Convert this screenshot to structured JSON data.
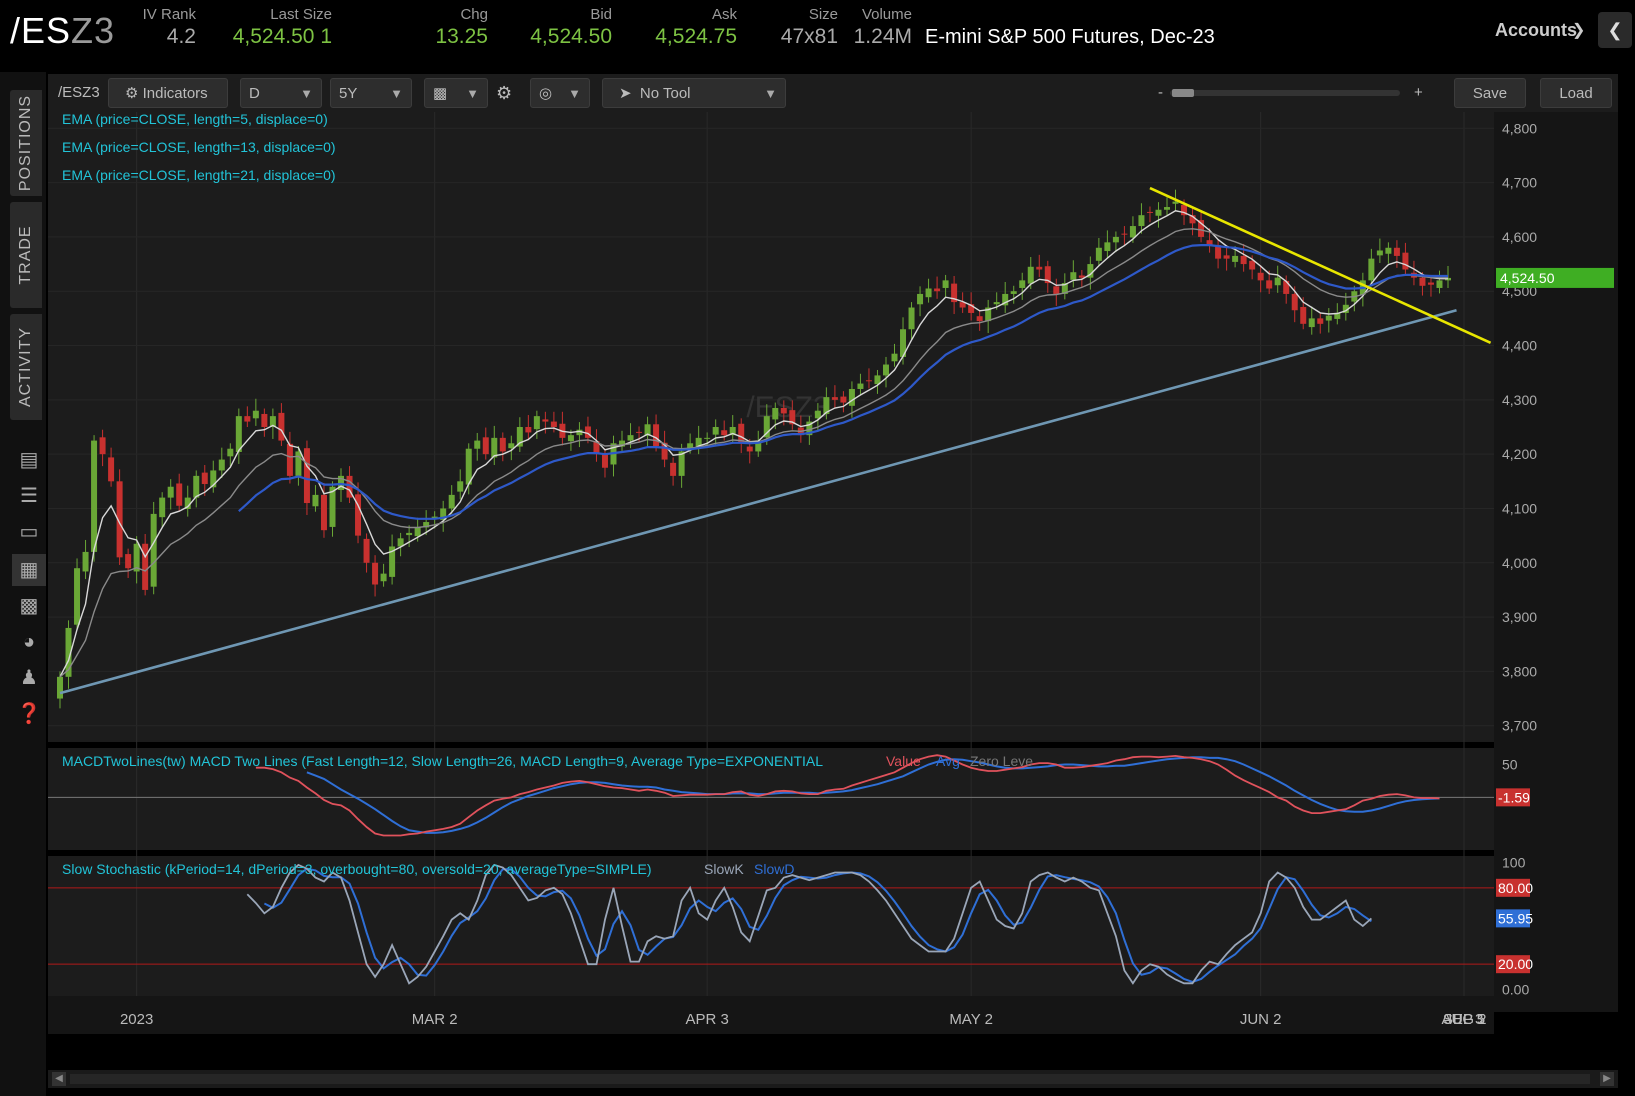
{
  "header": {
    "symbol_prefix": "/ES",
    "symbol_suffix": "Z3",
    "quotes": [
      {
        "label": "IV Rank",
        "value": "4.2",
        "color": "#aaaaaa"
      },
      {
        "label": "Last Size",
        "value": "4,524.50",
        "extra": "1",
        "color": "#7dc243"
      },
      {
        "label": "Chg",
        "value": "13.25",
        "color": "#7dc243"
      },
      {
        "label": "Bid",
        "value": "4,524.50",
        "color": "#7dc243"
      },
      {
        "label": "Ask",
        "value": "4,524.75",
        "color": "#7dc243"
      },
      {
        "label": "Size",
        "value": "47x81",
        "color": "#aaaaaa"
      },
      {
        "label": "Volume",
        "value": "1.24M",
        "color": "#aaaaaa"
      }
    ],
    "description": "E-mini S&P 500 Futures, Dec-23",
    "accounts_label": "Accounts"
  },
  "sidebar": {
    "tabs": [
      "POSITIONS",
      "TRADE",
      "ACTIVITY"
    ],
    "icons": [
      "news-icon",
      "list-icon",
      "tv-icon",
      "chart-icon",
      "grid-icon",
      "gauge-icon",
      "people-icon",
      "help-icon"
    ]
  },
  "toolbar": {
    "symbol": "/ESZ3",
    "indicators_label": "Indicators",
    "aggregation": "D",
    "timeframe": "5Y",
    "tool_label": "No Tool",
    "zoom_minus": "-",
    "zoom_plus": "+",
    "save_label": "Save",
    "load_label": "Load"
  },
  "chart_data": {
    "type": "candlestick",
    "watermark": "/ESZ3",
    "price_axis": {
      "ticks": [
        "4,800",
        "4,700",
        "4,600",
        "4,500",
        "4,400",
        "4,300",
        "4,200",
        "4,100",
        "4,000",
        "3,900",
        "3,800",
        "3,700"
      ],
      "range": [
        3670,
        4830
      ]
    },
    "last_price_label": "4,524.50",
    "x_axis_labels": [
      "2023",
      "MAR 2",
      "APR 3",
      "MAY 2",
      "JUN 2",
      "JUL 3",
      "AUG 2",
      "SEP 5"
    ],
    "study_labels": [
      "EMA (price=CLOSE, length=5, displace=0)",
      "EMA (price=CLOSE, length=13, displace=0)",
      "EMA (price=CLOSE, length=21, displace=0)"
    ],
    "closes": [
      3790,
      3880,
      3990,
      4020,
      4225,
      4200,
      4150,
      4010,
      3990,
      4035,
      3950,
      4090,
      4120,
      4140,
      4105,
      4120,
      4160,
      4145,
      4170,
      4190,
      4210,
      4270,
      4260,
      4280,
      4250,
      4270,
      4225,
      4160,
      4205,
      4110,
      4125,
      4060,
      4140,
      4160,
      4120,
      4050,
      4000,
      3960,
      3980,
      4030,
      4045,
      4055,
      4065,
      4075,
      4085,
      4100,
      4125,
      4150,
      4210,
      4225,
      4200,
      4230,
      4205,
      4220,
      4250,
      4240,
      4270,
      4260,
      4250,
      4230,
      4235,
      4245,
      4230,
      4200,
      4175,
      4220,
      4225,
      4235,
      4240,
      4255,
      4215,
      4190,
      4160,
      4205,
      4220,
      4230,
      4230,
      4250,
      4235,
      4250,
      4220,
      4205,
      4225,
      4270,
      4285,
      4275,
      4255,
      4235,
      4260,
      4280,
      4305,
      4300,
      4295,
      4320,
      4330,
      4335,
      4345,
      4365,
      4385,
      4430,
      4470,
      4495,
      4505,
      4500,
      4520,
      4480,
      4470,
      4460,
      4445,
      4470,
      4480,
      4495,
      4500,
      4520,
      4545,
      4540,
      4515,
      4495,
      4515,
      4535,
      4525,
      4550,
      4580,
      4590,
      4600,
      4605,
      4620,
      4640,
      4645,
      4650,
      4655,
      4665,
      4640,
      4625,
      4600,
      4585,
      4560,
      4560,
      4565,
      4550,
      4540,
      4520,
      4505,
      4525,
      4495,
      4465,
      4440,
      4450,
      4440,
      4455,
      4460,
      4475,
      4500,
      4520,
      4560,
      4575,
      4580,
      4565,
      4540,
      4525,
      4510,
      4512,
      4520,
      4524.5
    ],
    "ema5": [
      3790,
      3820,
      3877,
      3924,
      4025,
      4083,
      4105,
      4073,
      4046,
      4042,
      4011,
      4037,
      4065,
      4090,
      4095,
      4103,
      4122,
      4130,
      4143,
      4159,
      4176,
      4207,
      4225,
      4243,
      4245,
      4253,
      4244,
      4216,
      4212,
      4178,
      4160,
      4127,
      4131,
      4141,
      4134,
      4106,
      4071,
      4034,
      4016,
      4021,
      4029,
      4038,
      4047,
      4056,
      4066,
      4077,
      4093,
      4112,
      4145,
      4172,
      4181,
      4197,
      4200,
      4207,
      4221,
      4227,
      4241,
      4247,
      4248,
      4242,
      4240,
      4242,
      4238,
      4225,
      4208,
      4212,
      4216,
      4222,
      4228,
      4237,
      4230,
      4217,
      4198,
      4200,
      4207,
      4215,
      4220,
      4230,
      4232,
      4238,
      4232,
      4223,
      4224,
      4239,
      4254,
      4261,
      4259,
      4251,
      4254,
      4263,
      4277,
      4285,
      4288,
      4299,
      4309,
      4318,
      4327,
      4340,
      4355,
      4380,
      4410,
      4438,
      4460,
      4473,
      4489,
      4486,
      4481,
      4474,
      4464,
      4466,
      4471,
      4479,
      4486,
      4497,
      4513,
      4522,
      4520,
      4511,
      4512,
      4520,
      4522,
      4531,
      4547,
      4561,
      4574,
      4584,
      4596,
      4611,
      4622,
      4631,
      4639,
      4648,
      4645,
      4638,
      4625,
      4612,
      4595,
      4583,
      4577,
      4568,
      4559,
      4546,
      4532,
      4530,
      4518,
      4500,
      4480,
      4470,
      4460,
      4458,
      4459,
      4464,
      4476,
      4491,
      4514,
      4534,
      4549,
      4554,
      4549,
      4541,
      4531,
      4525,
      4523,
      4523
    ],
    "ema13": [
      3790,
      3803,
      3830,
      3857,
      3910,
      3952,
      3980,
      3984,
      3985,
      3991,
      3985,
      4000,
      4017,
      4034,
      4043,
      4054,
      4069,
      4079,
      4092,
      4106,
      4120,
      4142,
      4159,
      4176,
      4186,
      4198,
      4201,
      4195,
      4196,
      4183,
      4175,
      4158,
      4155,
      4155,
      4150,
      4136,
      4117,
      4095,
      4078,
      4071,
      4067,
      4065,
      4065,
      4067,
      4070,
      4074,
      4081,
      4091,
      4109,
      4125,
      4136,
      4150,
      4158,
      4167,
      4179,
      4188,
      4200,
      4209,
      4215,
      4218,
      4221,
      4225,
      4226,
      4222,
      4215,
      4216,
      4217,
      4219,
      4222,
      4227,
      4225,
      4219,
      4211,
      4210,
      4211,
      4213,
      4216,
      4220,
      4222,
      4226,
      4225,
      4222,
      4222,
      4228,
      4236,
      4241,
      4243,
      4242,
      4245,
      4250,
      4258,
      4264,
      4268,
      4276,
      4284,
      4292,
      4300,
      4309,
      4320,
      4335,
      4354,
      4374,
      4392,
      4407,
      4424,
      4432,
      4437,
      4441,
      4442,
      4446,
      4451,
      4457,
      4463,
      4471,
      4482,
      4490,
      4493,
      4494,
      4497,
      4502,
      4507,
      4514,
      4524,
      4535,
      4544,
      4553,
      4563,
      4574,
      4584,
      4593,
      4601,
      4610,
      4614,
      4615,
      4613,
      4609,
      4602,
      4596,
      4591,
      4585,
      4578,
      4570,
      4561,
      4556,
      4547,
      4536,
      4523,
      4513,
      4503,
      4496,
      4491,
      4489,
      4490,
      4494,
      4503,
      4513,
      4523,
      4529,
      4530,
      4529,
      4527,
      4525,
      4525,
      4525
    ],
    "ema21": [
      null,
      null,
      null,
      null,
      null,
      null,
      null,
      null,
      null,
      null,
      null,
      null,
      null,
      null,
      null,
      null,
      null,
      null,
      null,
      null,
      null,
      4095,
      4109,
      4124,
      4135,
      4147,
      4154,
      4155,
      4159,
      4154,
      4152,
      4144,
      4144,
      4145,
      4143,
      4135,
      4123,
      4108,
      4096,
      4090,
      4086,
      4083,
      4081,
      4081,
      4081,
      4083,
      4087,
      4093,
      4104,
      4115,
      4123,
      4133,
      4140,
      4147,
      4156,
      4164,
      4173,
      4181,
      4187,
      4191,
      4195,
      4199,
      4202,
      4202,
      4200,
      4202,
      4204,
      4206,
      4209,
      4213,
      4213,
      4212,
      4208,
      4208,
      4209,
      4211,
      4213,
      4216,
      4218,
      4221,
      4221,
      4220,
      4221,
      4225,
      4231,
      4235,
      4237,
      4237,
      4239,
      4243,
      4249,
      4254,
      4258,
      4264,
      4271,
      4277,
      4284,
      4291,
      4299,
      4311,
      4325,
      4341,
      4356,
      4369,
      4383,
      4392,
      4400,
      4406,
      4410,
      4416,
      4422,
      4429,
      4435,
      4443,
      4452,
      4460,
      4466,
      4469,
      4473,
      4479,
      4483,
      4490,
      4498,
      4506,
      4514,
      4522,
      4531,
      4540,
      4549,
      4557,
      4566,
      4574,
      4580,
      4584,
      4585,
      4585,
      4583,
      4581,
      4580,
      4577,
      4573,
      4568,
      4562,
      4558,
      4552,
      4544,
      4535,
      4527,
      4519,
      4513,
      4509,
      4505,
      4505,
      4506,
      4511,
      4517,
      4524,
      4528,
      4530,
      4530,
      4529,
      4528,
      4528,
      4528
    ],
    "trendlines": [
      {
        "color": "#6f97b3",
        "from": [
          0,
          3760
        ],
        "to": [
          164,
          4465
        ]
      },
      {
        "color": "#e8e600",
        "from": [
          128,
          4690
        ],
        "to": [
          168,
          4405
        ]
      }
    ],
    "macd": {
      "label": "MACDTwoLines(tw) MACD Two Lines (Fast Length=12, Slow Length=26, MACD Length=9, Average Type=EXPONENTIAL",
      "legend_value": "Value",
      "legend_avg": "Avg",
      "legend_zero": "Zero Leve",
      "tick_50": "50",
      "last_label": "-1.59",
      "range": [
        -80,
        75
      ],
      "value": [
        null,
        null,
        null,
        null,
        null,
        null,
        null,
        null,
        null,
        null,
        null,
        null,
        null,
        null,
        null,
        null,
        null,
        null,
        null,
        null,
        null,
        null,
        null,
        45,
        45,
        43,
        38,
        30,
        25,
        15,
        6,
        -4,
        -10,
        -12,
        -20,
        -33,
        -45,
        -55,
        -58,
        -58,
        -58,
        -56,
        -55,
        -52,
        -50,
        -48,
        -45,
        -40,
        -30,
        -20,
        -12,
        -5,
        -2,
        0,
        5,
        8,
        12,
        15,
        18,
        22,
        24,
        25,
        23,
        20,
        17,
        15,
        14,
        12,
        10,
        12,
        10,
        7,
        2,
        3,
        4,
        4,
        4,
        5,
        5,
        8,
        9,
        4,
        2,
        5,
        9,
        10,
        9,
        6,
        5,
        5,
        10,
        12,
        13,
        18,
        22,
        26,
        30,
        34,
        38,
        45,
        52,
        58,
        62,
        64,
        62,
        56,
        50,
        45,
        42,
        40,
        40,
        42,
        44,
        46,
        50,
        52,
        52,
        50,
        45,
        45,
        46,
        48,
        50,
        52,
        56,
        58,
        61,
        62,
        62,
        61,
        62,
        63,
        61,
        60,
        58,
        55,
        50,
        42,
        33,
        26,
        20,
        14,
        8,
        0,
        -5,
        -14,
        -20,
        -24,
        -24,
        -22,
        -20,
        -18,
        -12,
        -5,
        -2,
        2,
        4,
        5,
        3,
        0,
        -1,
        -1,
        -1.6
      ],
      "avg": [
        null,
        null,
        null,
        null,
        null,
        null,
        null,
        null,
        null,
        null,
        null,
        null,
        null,
        null,
        null,
        null,
        null,
        null,
        null,
        null,
        null,
        null,
        null,
        null,
        null,
        null,
        null,
        null,
        null,
        38,
        33,
        28,
        20,
        12,
        5,
        -2,
        -10,
        -18,
        -27,
        -36,
        -44,
        -50,
        -52,
        -54,
        -54,
        -53,
        -51,
        -48,
        -44,
        -38,
        -31,
        -23,
        -15,
        -8,
        -3,
        2,
        6,
        10,
        14,
        17,
        20,
        22,
        23,
        23,
        22,
        20,
        18,
        17,
        16,
        16,
        15,
        12,
        10,
        8,
        7,
        6,
        5,
        5,
        5,
        6,
        6,
        6,
        5,
        5,
        6,
        7,
        7,
        7,
        7,
        6,
        7,
        8,
        9,
        11,
        14,
        17,
        20,
        24,
        28,
        32,
        38,
        44,
        50,
        54,
        57,
        58,
        57,
        55,
        53,
        50,
        47,
        45,
        44,
        44,
        45,
        46,
        47,
        49,
        50,
        50,
        49,
        48,
        47,
        47,
        48,
        48,
        50,
        52,
        54,
        56,
        58,
        59,
        60,
        61,
        61,
        60,
        60,
        58,
        55,
        50,
        44,
        38,
        32,
        25,
        18,
        10,
        3,
        -4,
        -10,
        -15,
        -19,
        -21,
        -22,
        -22,
        -20,
        -17,
        -13,
        -9,
        -6,
        -4,
        -3,
        -2,
        -1.6
      ]
    },
    "stochastic": {
      "label": "Slow Stochastic (kPeriod=14, dPeriod=3, overbought=80, oversold=20, averageType=SIMPLE)",
      "legend_k": "SlowK",
      "legend_d": "SlowD",
      "ticks": [
        "100",
        "0.00"
      ],
      "overbought_label": "80.00",
      "oversold_label": "20.00",
      "last_label": "55.95",
      "range": [
        -5,
        105
      ],
      "slowk": [
        null,
        null,
        null,
        null,
        null,
        null,
        null,
        null,
        null,
        null,
        null,
        null,
        null,
        null,
        null,
        null,
        null,
        null,
        null,
        null,
        null,
        null,
        75,
        68,
        60,
        65,
        80,
        92,
        98,
        95,
        88,
        85,
        92,
        88,
        70,
        45,
        20,
        10,
        20,
        35,
        20,
        5,
        10,
        18,
        30,
        42,
        55,
        60,
        55,
        70,
        90,
        98,
        96,
        90,
        80,
        70,
        72,
        78,
        80,
        75,
        60,
        40,
        20,
        20,
        55,
        80,
        50,
        22,
        22,
        38,
        42,
        40,
        42,
        70,
        80,
        60,
        55,
        70,
        80,
        65,
        45,
        38,
        58,
        78,
        80,
        88,
        90,
        88,
        86,
        88,
        90,
        92,
        92,
        92,
        90,
        85,
        78,
        70,
        60,
        50,
        40,
        35,
        30,
        30,
        30,
        40,
        60,
        80,
        85,
        70,
        55,
        50,
        48,
        60,
        85,
        90,
        92,
        88,
        85,
        88,
        85,
        80,
        78,
        60,
        42,
        15,
        5,
        15,
        20,
        18,
        12,
        8,
        5,
        5,
        15,
        22,
        20,
        28,
        35,
        40,
        45,
        60,
        85,
        92,
        88,
        80,
        65,
        55,
        55,
        60,
        65,
        70,
        55,
        50,
        56
      ]
    }
  }
}
